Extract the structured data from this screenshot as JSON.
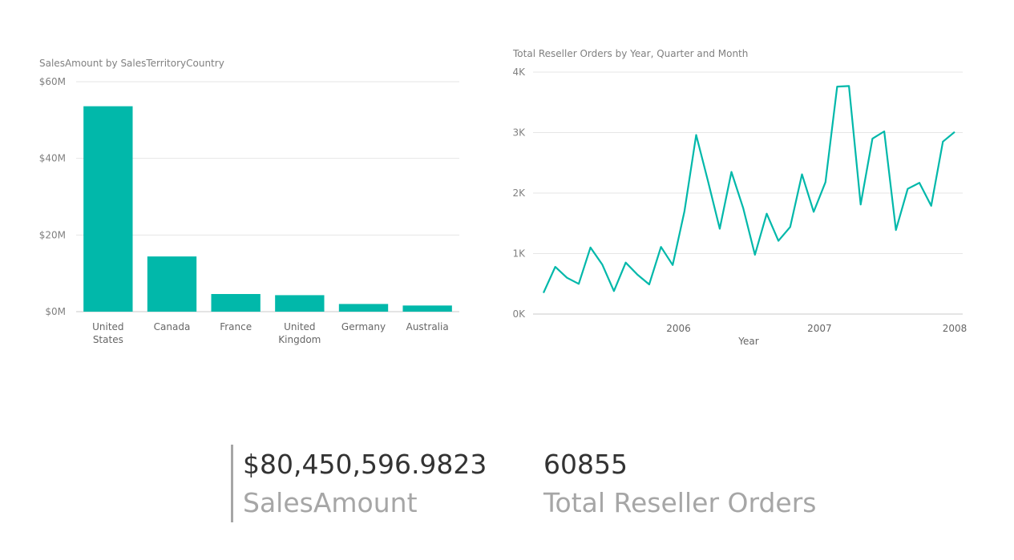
{
  "colors": {
    "accent": "#01b8aa",
    "grid": "#e6e6e6",
    "axis_text": "#808080"
  },
  "chart_data": [
    {
      "type": "bar",
      "title": "SalesAmount by SalesTerritoryCountry",
      "categories": [
        "United States",
        "Canada",
        "France",
        "United Kingdom",
        "Germany",
        "Australia"
      ],
      "category_lines": [
        [
          "United",
          "States"
        ],
        [
          "Canada"
        ],
        [
          "France"
        ],
        [
          "United",
          "Kingdom"
        ],
        [
          "Germany"
        ],
        [
          "Australia"
        ]
      ],
      "values": [
        53600000,
        14400000,
        4600000,
        4300000,
        2000000,
        1600000
      ],
      "ylim": [
        0,
        60000000
      ],
      "y_ticks": [
        0,
        20000000,
        40000000,
        60000000
      ],
      "y_tick_labels": [
        "$0M",
        "$20M",
        "$40M",
        "$60M"
      ],
      "grid": true
    },
    {
      "type": "line",
      "title": "Total Reseller Orders by Year, Quarter and Month",
      "xlabel": "Year",
      "x": [
        "2005-07",
        "2005-08",
        "2005-09",
        "2005-10",
        "2005-11",
        "2005-12",
        "2006-01",
        "2006-02",
        "2006-03",
        "2006-04",
        "2006-05",
        "2006-06",
        "2006-07",
        "2006-08",
        "2006-09",
        "2006-10",
        "2006-11",
        "2006-12",
        "2007-01",
        "2007-02",
        "2007-03",
        "2007-04",
        "2007-05",
        "2007-06",
        "2007-07",
        "2007-08",
        "2007-09",
        "2007-10",
        "2007-11",
        "2007-12",
        "2008-01",
        "2008-02",
        "2008-03",
        "2008-04",
        "2008-05",
        "2008-06"
      ],
      "values": [
        350,
        780,
        600,
        500,
        1100,
        820,
        380,
        850,
        650,
        490,
        1110,
        810,
        1700,
        2960,
        2200,
        1410,
        2350,
        1750,
        980,
        1660,
        1210,
        1440,
        2310,
        1690,
        2180,
        3760,
        3770,
        1810,
        2900,
        3020,
        1390,
        2070,
        2170,
        1790,
        2850,
        3010
      ],
      "x_ticks": [
        "2006",
        "2007",
        "2008"
      ],
      "ylim": [
        0,
        4000
      ],
      "y_ticks": [
        0,
        1000,
        2000,
        3000,
        4000
      ],
      "y_tick_labels": [
        "0K",
        "1K",
        "2K",
        "3K",
        "4K"
      ],
      "grid": true
    }
  ],
  "cards": [
    {
      "value": "$80,450,596.9823",
      "label": "SalesAmount"
    },
    {
      "value": "60855",
      "label": "Total Reseller Orders"
    }
  ]
}
